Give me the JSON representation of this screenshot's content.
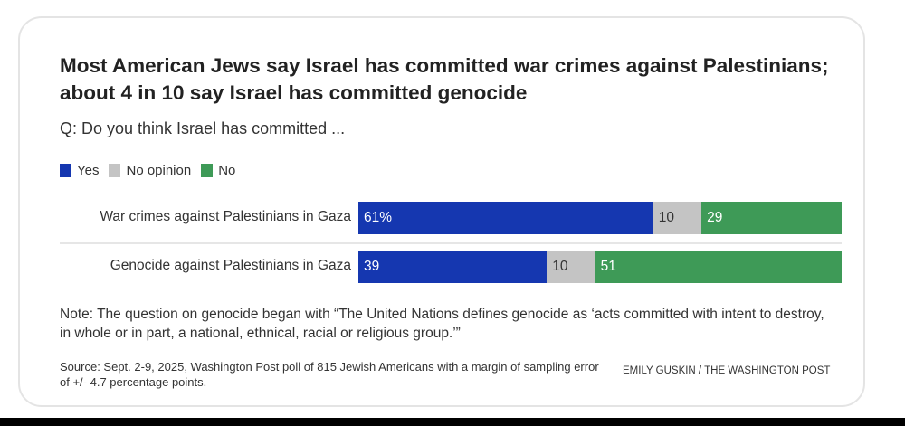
{
  "title": "Most American Jews say Israel has committed war crimes against Palestinians; about 4 in 10 say Israel has committed genocide",
  "subtitle": "Q: Do you think Israel has committed ...",
  "note": "Note: The question on genocide began with “The United Nations defines genocide as ‘acts committed with intent to destroy, in whole or in part, a national, ethnical, racial or religious group.’”",
  "source": "Source: Sept. 2-9, 2025, Washington Post poll of 815 Jewish Americans with a margin of sampling error of +/- 4.7 percentage points.",
  "credit": "EMILY GUSKIN / THE WASHINGTON POST",
  "chart_data": {
    "type": "bar",
    "stacked": true,
    "orientation": "horizontal",
    "categories": [
      "War crimes against Palestinians in Gaza",
      "Genocide against Palestinians in Gaza"
    ],
    "series": [
      {
        "name": "Yes",
        "color": "#1537b0",
        "text_color": "#ffffff",
        "values": [
          61,
          39
        ],
        "labels": [
          "61%",
          "39"
        ]
      },
      {
        "name": "No opinion",
        "color": "#c4c4c4",
        "text_color": "#333333",
        "values": [
          10,
          10
        ],
        "labels": [
          "10",
          "10"
        ]
      },
      {
        "name": "No",
        "color": "#3e9a57",
        "text_color": "#ffffff",
        "values": [
          29,
          51
        ],
        "labels": [
          "29",
          "51"
        ]
      }
    ],
    "xlim": [
      0,
      100
    ],
    "legend": "top-left"
  }
}
